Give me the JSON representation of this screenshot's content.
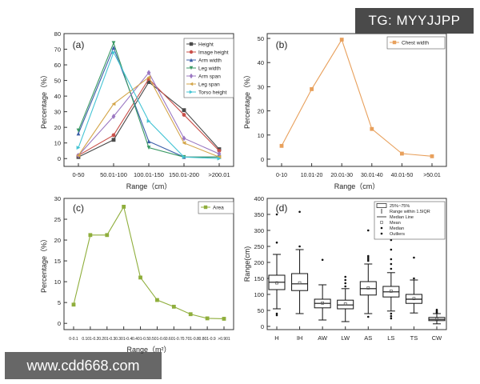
{
  "watermarks": {
    "top": "TG: MYYJJPP",
    "bottom": "www.cdd668.com"
  },
  "chart_data": [
    {
      "panel": "(a)",
      "type": "line",
      "xlabel": "Range（cm）",
      "ylabel": "Percentage（%）",
      "ylim": [
        -5,
        80
      ],
      "yticks": [
        0,
        10,
        20,
        30,
        40,
        50,
        60,
        70,
        80
      ],
      "categories": [
        "0-50",
        "50.01-100",
        "100.01-150",
        "150.01-200",
        ">200.01"
      ],
      "legend_position": "top-right",
      "series": [
        {
          "name": "Height",
          "color": "#4a4a4a",
          "marker": "square",
          "values": [
            1,
            12,
            49,
            31,
            6
          ]
        },
        {
          "name": "Image height",
          "color": "#c9504a",
          "marker": "circle",
          "values": [
            2,
            15,
            51,
            28,
            5
          ]
        },
        {
          "name": "Arm width",
          "color": "#3b5ea8",
          "marker": "triangle",
          "values": [
            16,
            71,
            11,
            1,
            1
          ]
        },
        {
          "name": "Leg width",
          "color": "#3a9a64",
          "marker": "triangle-down",
          "values": [
            18,
            74,
            7,
            1,
            1
          ]
        },
        {
          "name": "Arm span",
          "color": "#9b78c2",
          "marker": "diamond",
          "values": [
            2,
            27,
            55,
            13,
            3
          ]
        },
        {
          "name": "Leg span",
          "color": "#d4a64a",
          "marker": "triangle-left",
          "values": [
            2,
            35,
            52,
            10,
            1
          ]
        },
        {
          "name": "Torso height",
          "color": "#44c4d4",
          "marker": "triangle-right",
          "values": [
            7,
            68,
            24,
            1,
            0
          ]
        }
      ]
    },
    {
      "panel": "(b)",
      "type": "line",
      "xlabel": "Range（cm）",
      "ylabel": "Percentage（%）",
      "ylim": [
        -3,
        52
      ],
      "yticks": [
        0,
        10,
        20,
        30,
        40,
        50
      ],
      "categories": [
        "0-10",
        "10.01-20",
        "20.01-30",
        "30.01-40",
        "40.01-50",
        ">50.01"
      ],
      "legend_position": "top-right",
      "series": [
        {
          "name": "Chest width",
          "color": "#e8a05c",
          "marker": "square",
          "values": [
            5.5,
            29,
            49.5,
            12.5,
            2.3,
            1.2
          ]
        }
      ]
    },
    {
      "panel": "(c)",
      "type": "line",
      "xlabel": "Range（m²）",
      "ylabel": "Percentage（%）",
      "ylim": [
        -1.5,
        30
      ],
      "yticks": [
        0,
        5,
        10,
        15,
        20,
        25,
        30
      ],
      "categories": [
        "0-0.1",
        "0.101-0.2",
        "0.201-0.3",
        "0.301-0.4",
        "0.401-0.5",
        "0.501-0.6",
        "0.601-0.7",
        "0.701-0.8",
        "0.801-0.9",
        ">0.901"
      ],
      "legend_position": "top-right",
      "series": [
        {
          "name": "Area",
          "color": "#8fae3c",
          "marker": "square",
          "values": [
            4.5,
            21.2,
            21.2,
            28,
            11,
            5.6,
            4.0,
            2.2,
            1.2,
            1.1
          ]
        }
      ]
    },
    {
      "panel": "(d)",
      "type": "box",
      "xlabel": "",
      "ylabel": "Range(cm)",
      "ylim": [
        -10,
        400
      ],
      "yticks": [
        0,
        50,
        100,
        150,
        200,
        250,
        300,
        350,
        400
      ],
      "categories": [
        "H",
        "IH",
        "AW",
        "LW",
        "AS",
        "LS",
        "TS",
        "CW"
      ],
      "legend_position": "top-right",
      "legend": [
        "25%~75%",
        "Range within 1.5IQR",
        "Median Line",
        "Mean",
        "Median",
        "Outliers"
      ],
      "boxes": [
        {
          "name": "H",
          "whisker_low": 55,
          "q1": 115,
          "median": 138,
          "mean": 136,
          "q3": 160,
          "whisker_high": 225,
          "outliers": [
            40,
            35,
            262,
            350
          ]
        },
        {
          "name": "IH",
          "whisker_low": 40,
          "q1": 112,
          "median": 133,
          "mean": 136,
          "q3": 165,
          "whisker_high": 240,
          "outliers": [
            250,
            358
          ]
        },
        {
          "name": "AW",
          "whisker_low": 20,
          "q1": 58,
          "median": 72,
          "mean": 73,
          "q3": 85,
          "whisker_high": 130,
          "outliers": [
            208
          ]
        },
        {
          "name": "LW",
          "whisker_low": 15,
          "q1": 55,
          "median": 67,
          "mean": 70,
          "q3": 82,
          "whisker_high": 118,
          "outliers": [
            125,
            135,
            145,
            155
          ]
        },
        {
          "name": "AS",
          "whisker_low": 40,
          "q1": 98,
          "median": 118,
          "mean": 120,
          "q3": 140,
          "whisker_high": 195,
          "outliers": [
            30,
            205,
            210,
            215,
            220,
            300
          ]
        },
        {
          "name": "LS",
          "whisker_low": 48,
          "q1": 92,
          "median": 108,
          "mean": 110,
          "q3": 125,
          "whisker_high": 168,
          "outliers": [
            25,
            32,
            40,
            180,
            195,
            210,
            240,
            270
          ]
        },
        {
          "name": "TS",
          "whisker_low": 42,
          "q1": 72,
          "median": 85,
          "mean": 87,
          "q3": 100,
          "whisker_high": 145,
          "outliers": [
            150,
            215
          ]
        },
        {
          "name": "CW",
          "whisker_low": 8,
          "q1": 18,
          "median": 22,
          "mean": 23,
          "q3": 28,
          "whisker_high": 40,
          "outliers": [
            42,
            45,
            48,
            52
          ]
        }
      ]
    }
  ]
}
